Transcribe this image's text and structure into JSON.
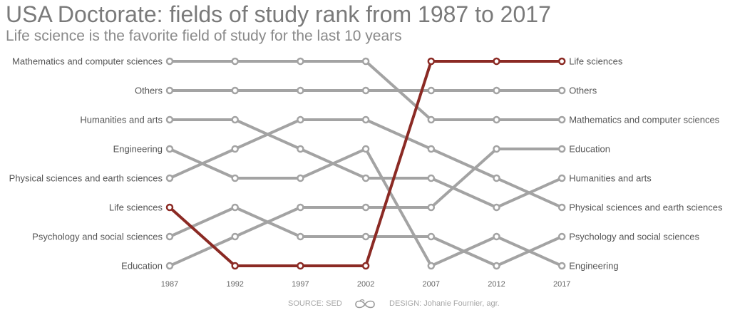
{
  "header": {
    "title": "USA Doctorate: fields of study rank from 1987 to 2017",
    "subtitle": "Life science is the favorite field of study for the last 10 years"
  },
  "footer": {
    "source": "SOURCE: SED",
    "design": "DESIGN: Johanie Fournier, agr.",
    "logo_icon": "infinity-logo-icon"
  },
  "colors": {
    "highlight": "#8b2a24",
    "line": "#a3a3a3",
    "label": "#555555",
    "axis_label": "#666666"
  },
  "chart_data": {
    "type": "line",
    "chart_kind": "bump",
    "x": [
      "1987",
      "1992",
      "1997",
      "2002",
      "2007",
      "2012",
      "2017"
    ],
    "y_meaning": "rank (1 = top)",
    "ylim": [
      8,
      1
    ],
    "highlight": "Life sciences",
    "left_labels": [
      "Mathematics and computer sciences",
      "Others",
      "Humanities and arts",
      "Engineering",
      "Physical sciences and earth sciences",
      "Life sciences",
      "Psychology and social sciences",
      "Education"
    ],
    "right_labels": [
      "Life sciences",
      "Others",
      "Mathematics and computer sciences",
      "Education",
      "Humanities and arts",
      "Physical sciences and earth sciences",
      "Psychology and social sciences",
      "Engineering"
    ],
    "series": [
      {
        "name": "Mathematics and computer sciences",
        "values": [
          1,
          1,
          1,
          1,
          3,
          3,
          3
        ]
      },
      {
        "name": "Others",
        "values": [
          2,
          2,
          2,
          2,
          2,
          2,
          2
        ]
      },
      {
        "name": "Humanities and arts",
        "values": [
          3,
          3,
          4,
          5,
          5,
          6,
          5
        ]
      },
      {
        "name": "Engineering",
        "values": [
          4,
          5,
          5,
          4,
          8,
          7,
          8
        ]
      },
      {
        "name": "Physical sciences and earth sciences",
        "values": [
          5,
          4,
          3,
          3,
          4,
          5,
          6
        ]
      },
      {
        "name": "Life sciences",
        "values": [
          6,
          8,
          8,
          8,
          1,
          1,
          1
        ]
      },
      {
        "name": "Psychology and social sciences",
        "values": [
          7,
          6,
          7,
          7,
          7,
          8,
          7
        ]
      },
      {
        "name": "Education",
        "values": [
          8,
          7,
          6,
          6,
          6,
          4,
          4
        ]
      }
    ]
  }
}
